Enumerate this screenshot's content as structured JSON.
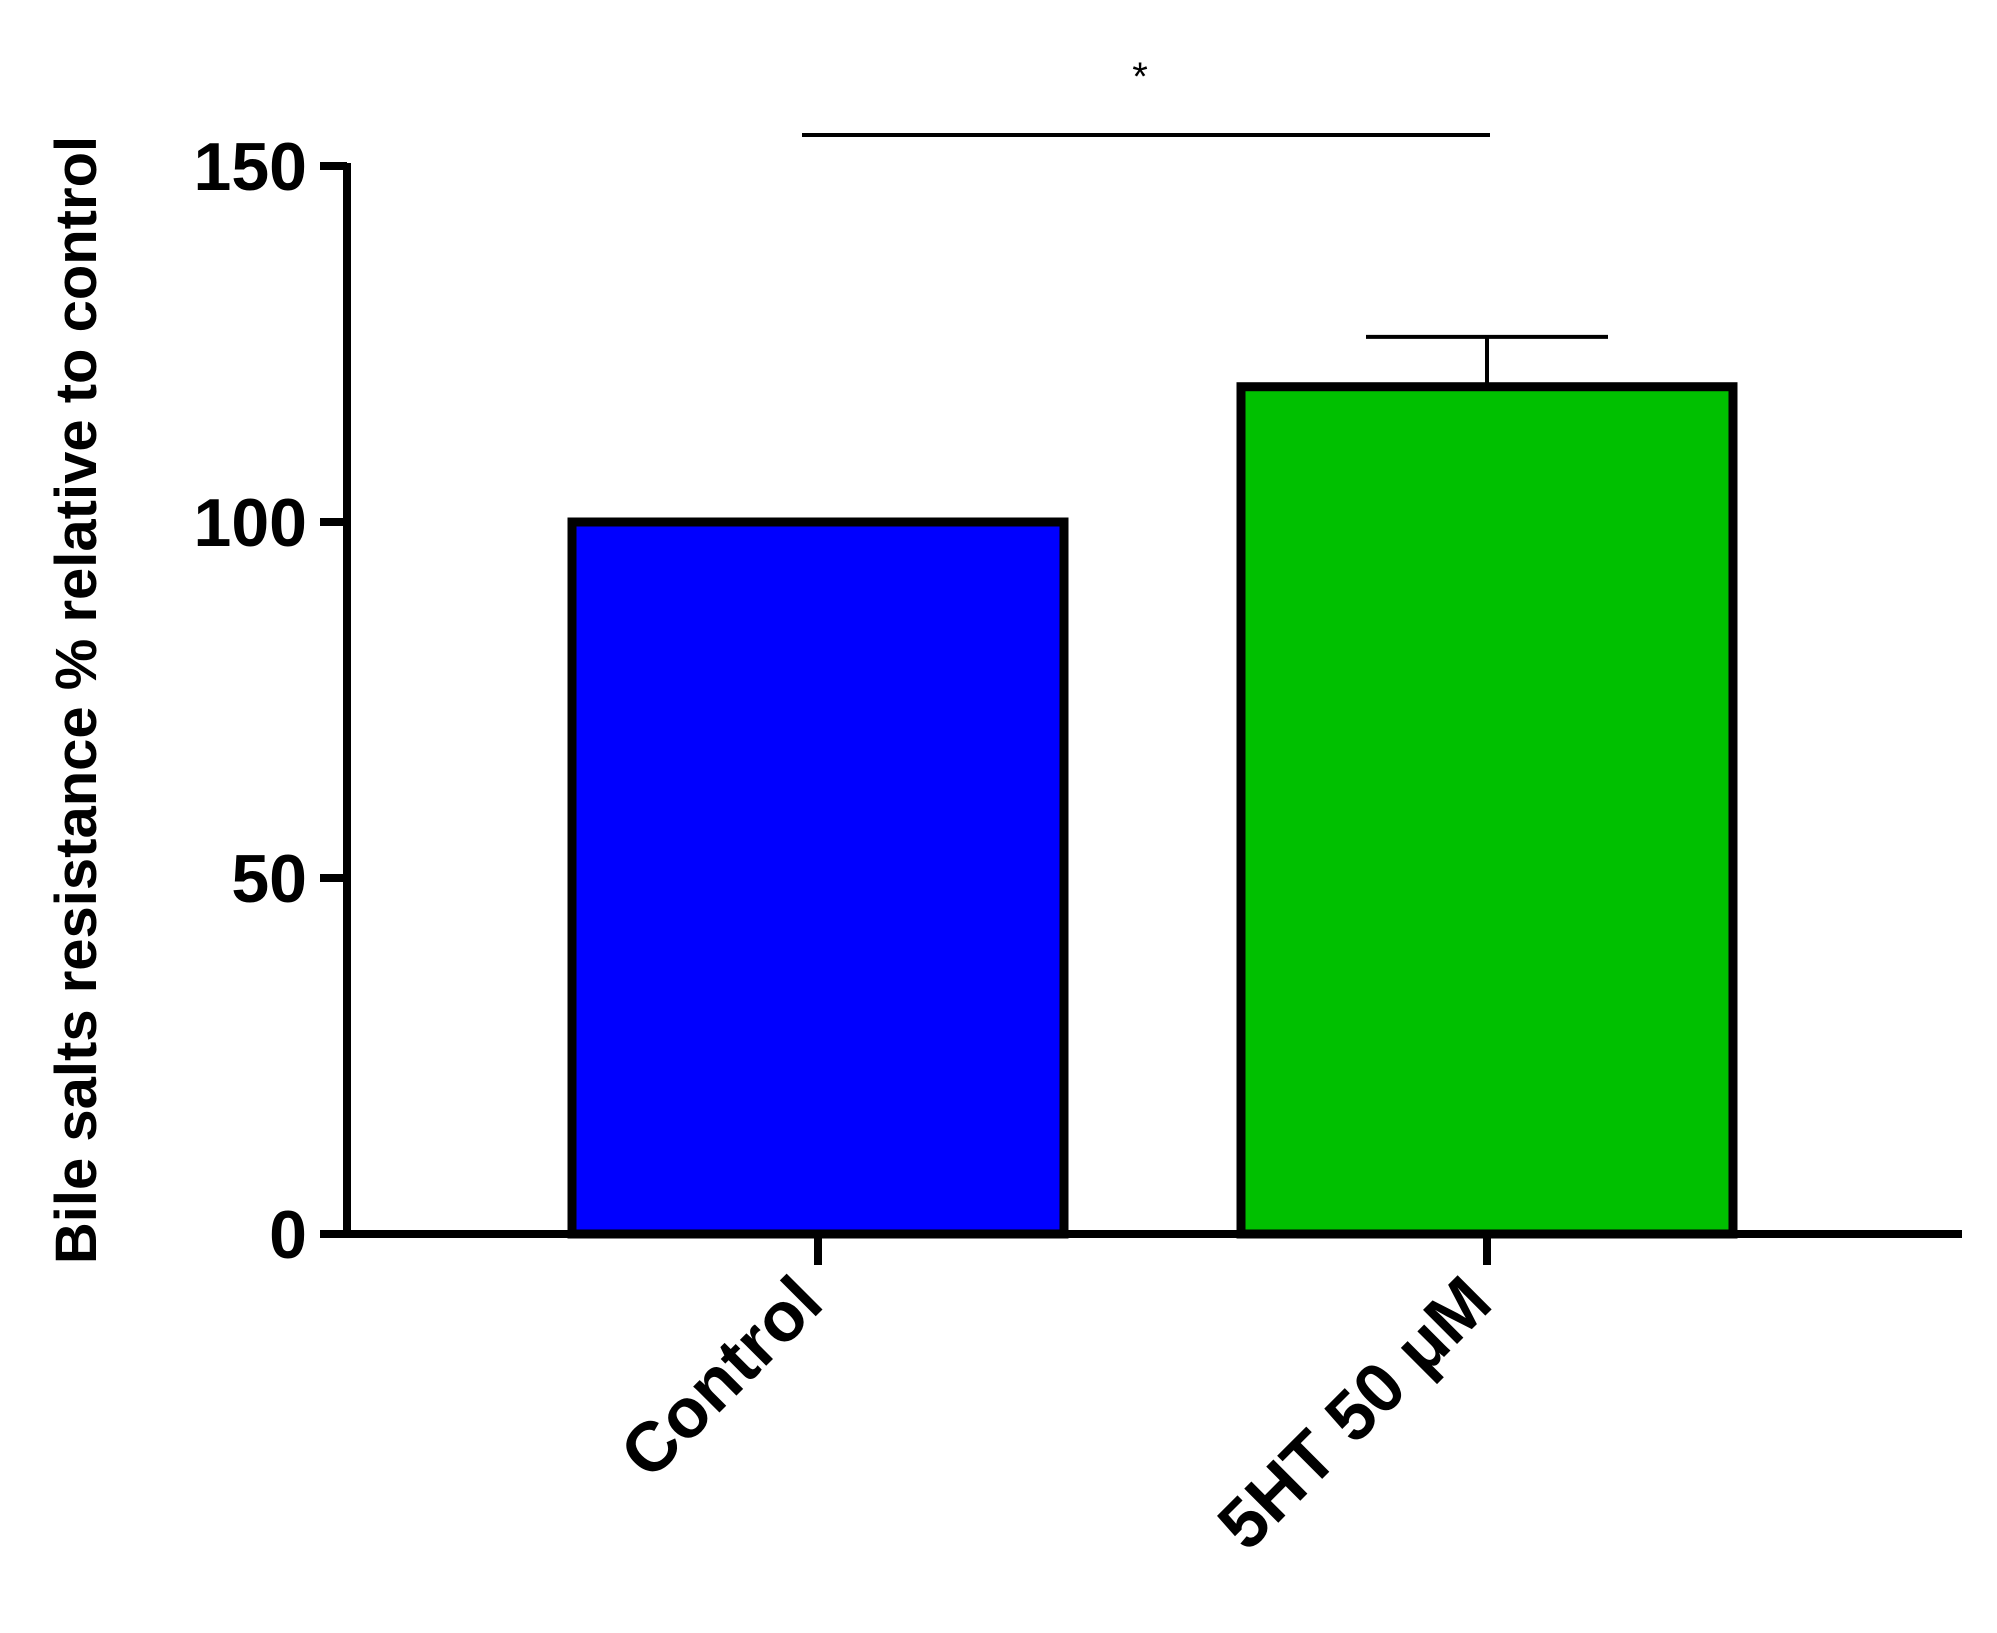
{
  "chart_data": {
    "type": "bar",
    "title": "",
    "xlabel": "",
    "ylabel": "Bile salts resistance % relative to control",
    "categories": [
      "Control",
      "5HT 50 μM"
    ],
    "values": [
      100,
      119
    ],
    "error_upper": [
      null,
      126
    ],
    "colors": [
      "#0000ff",
      "#00c000"
    ],
    "ylim": [
      0,
      150
    ],
    "yticks": [
      "0",
      "50",
      "100",
      "150"
    ],
    "grid": false,
    "significance": {
      "label": "*",
      "between": [
        "Control",
        "5HT 50 μM"
      ]
    }
  }
}
